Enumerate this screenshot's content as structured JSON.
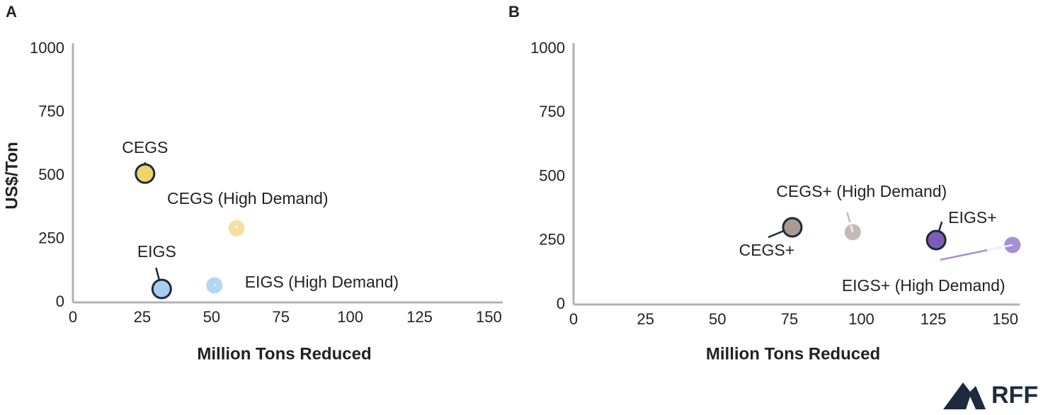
{
  "chart_data": [
    {
      "type": "scatter",
      "panel": "A",
      "y_label": "US$/Ton",
      "x_label": "Million Tons Reduced",
      "xlim": [
        0,
        155
      ],
      "xticks": [
        0,
        25,
        50,
        75,
        100,
        125,
        150
      ],
      "ylim": [
        0,
        1000
      ],
      "yticks": [
        0,
        250,
        500,
        750,
        1000
      ],
      "series": [
        {
          "name": "CEGS",
          "color": "#f0d46a",
          "outline": true,
          "x": [
            26
          ],
          "values": [
            508
          ]
        },
        {
          "name": "CEGS (High Demand)",
          "color": "#f3e29f",
          "outline": false,
          "x": [
            59
          ],
          "values": [
            293
          ]
        },
        {
          "name": "EIGS",
          "color": "#a8cdf0",
          "outline": true,
          "x": [
            32
          ],
          "values": [
            53
          ]
        },
        {
          "name": "EIGS (High Demand)",
          "color": "#b3d6f5",
          "outline": false,
          "x": [
            51
          ],
          "values": [
            67
          ]
        }
      ]
    },
    {
      "type": "scatter",
      "panel": "B",
      "x_label": "Million Tons Reduced",
      "xlim": [
        0,
        155
      ],
      "xticks": [
        0,
        25,
        50,
        75,
        100,
        125,
        150
      ],
      "ylim": [
        0,
        1000
      ],
      "yticks": [
        0,
        250,
        500,
        750,
        1000
      ],
      "series": [
        {
          "name": "CEGS+",
          "color": "#a99b93",
          "outline": true,
          "x": [
            76
          ],
          "values": [
            302
          ]
        },
        {
          "name": "CEGS+ (High Demand)",
          "color": "#c5bbb6",
          "outline": false,
          "x": [
            97
          ],
          "values": [
            283
          ]
        },
        {
          "name": "EIGS+",
          "color": "#7b5db6",
          "outline": true,
          "x": [
            126
          ],
          "values": [
            252
          ]
        },
        {
          "name": "EIGS+ (High Demand)",
          "color": "#a690d5",
          "outline": false,
          "x": [
            152.5
          ],
          "values": [
            233
          ]
        }
      ]
    }
  ],
  "logo": {
    "text": "RFF"
  }
}
